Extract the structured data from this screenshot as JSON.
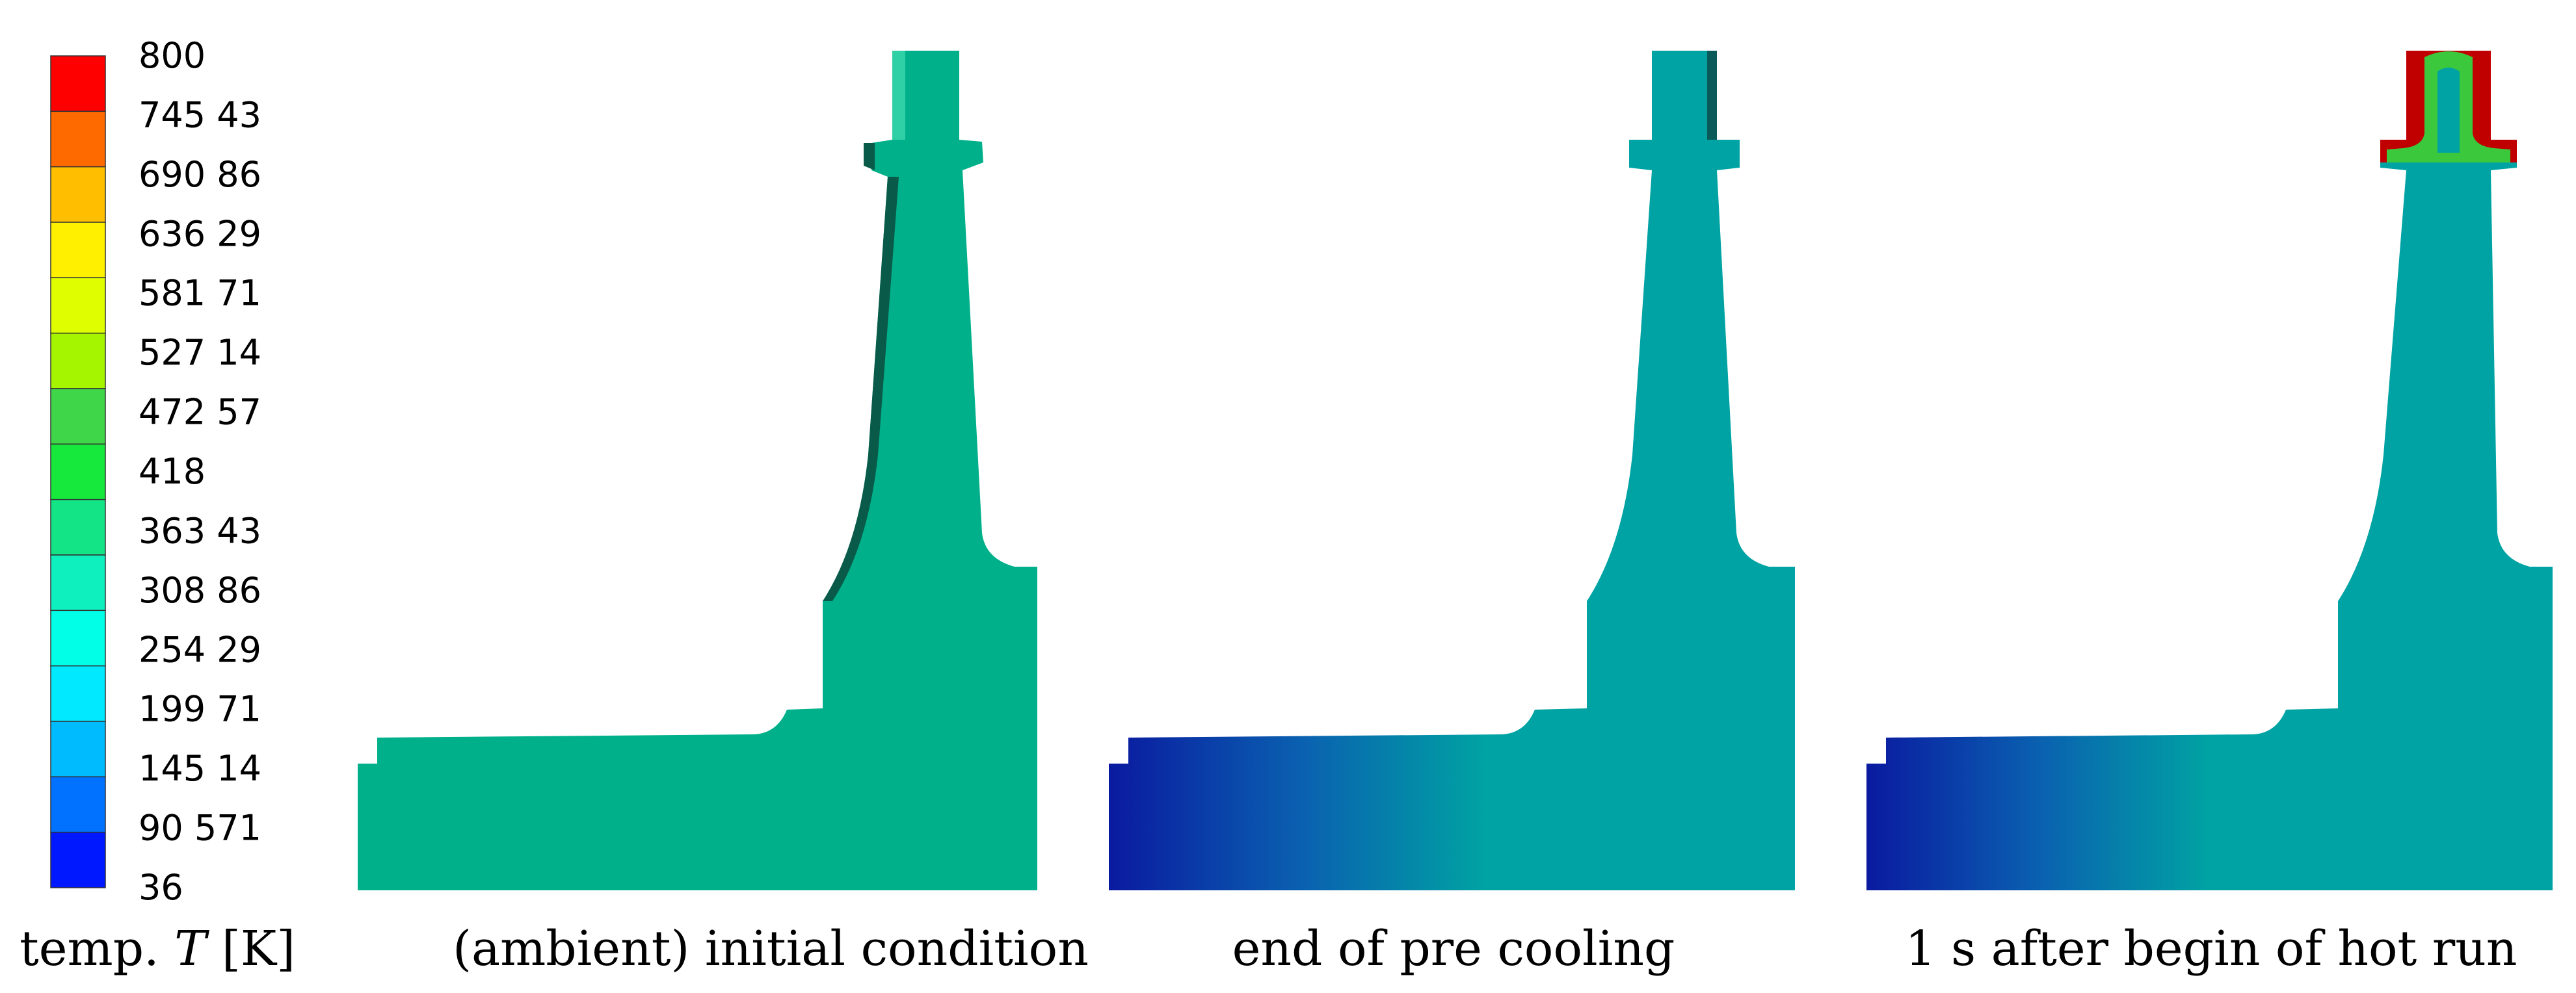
{
  "legend": {
    "title_prefix": "temp. ",
    "title_symbol": "T",
    "title_suffix": " [K]",
    "levels": [
      "800",
      "745 43",
      "690 86",
      "636 29",
      "581 71",
      "527 14",
      "472 57",
      "418",
      "363 43",
      "308 86",
      "254 29",
      "199 71",
      "145 14",
      "90 571",
      "36"
    ],
    "band_colors": [
      "#ff0000",
      "#ff6a00",
      "#ffbe00",
      "#fff000",
      "#dfff00",
      "#a6f500",
      "#3fd64a",
      "#17e83c",
      "#13e486",
      "#0ff0bf",
      "#00ffe6",
      "#00e9ff",
      "#00bcff",
      "#0072ff",
      "#0018ff"
    ]
  },
  "panels": [
    {
      "caption": "(ambient) initial condition",
      "body_color": "#00b08a",
      "edge_color": "#0a5a4a"
    },
    {
      "caption": "end of pre cooling",
      "body_color": "#00a3a3",
      "cold_color": "#0a1aa0",
      "mid_color": "#0a60b0"
    },
    {
      "caption": "1 s after begin of hot run",
      "body_color": "#00a3a3",
      "cold_color": "#0a1aa0",
      "mid_color": "#0a60b0",
      "hot_color": "#c00000",
      "warm_color": "#3cc83c"
    }
  ]
}
